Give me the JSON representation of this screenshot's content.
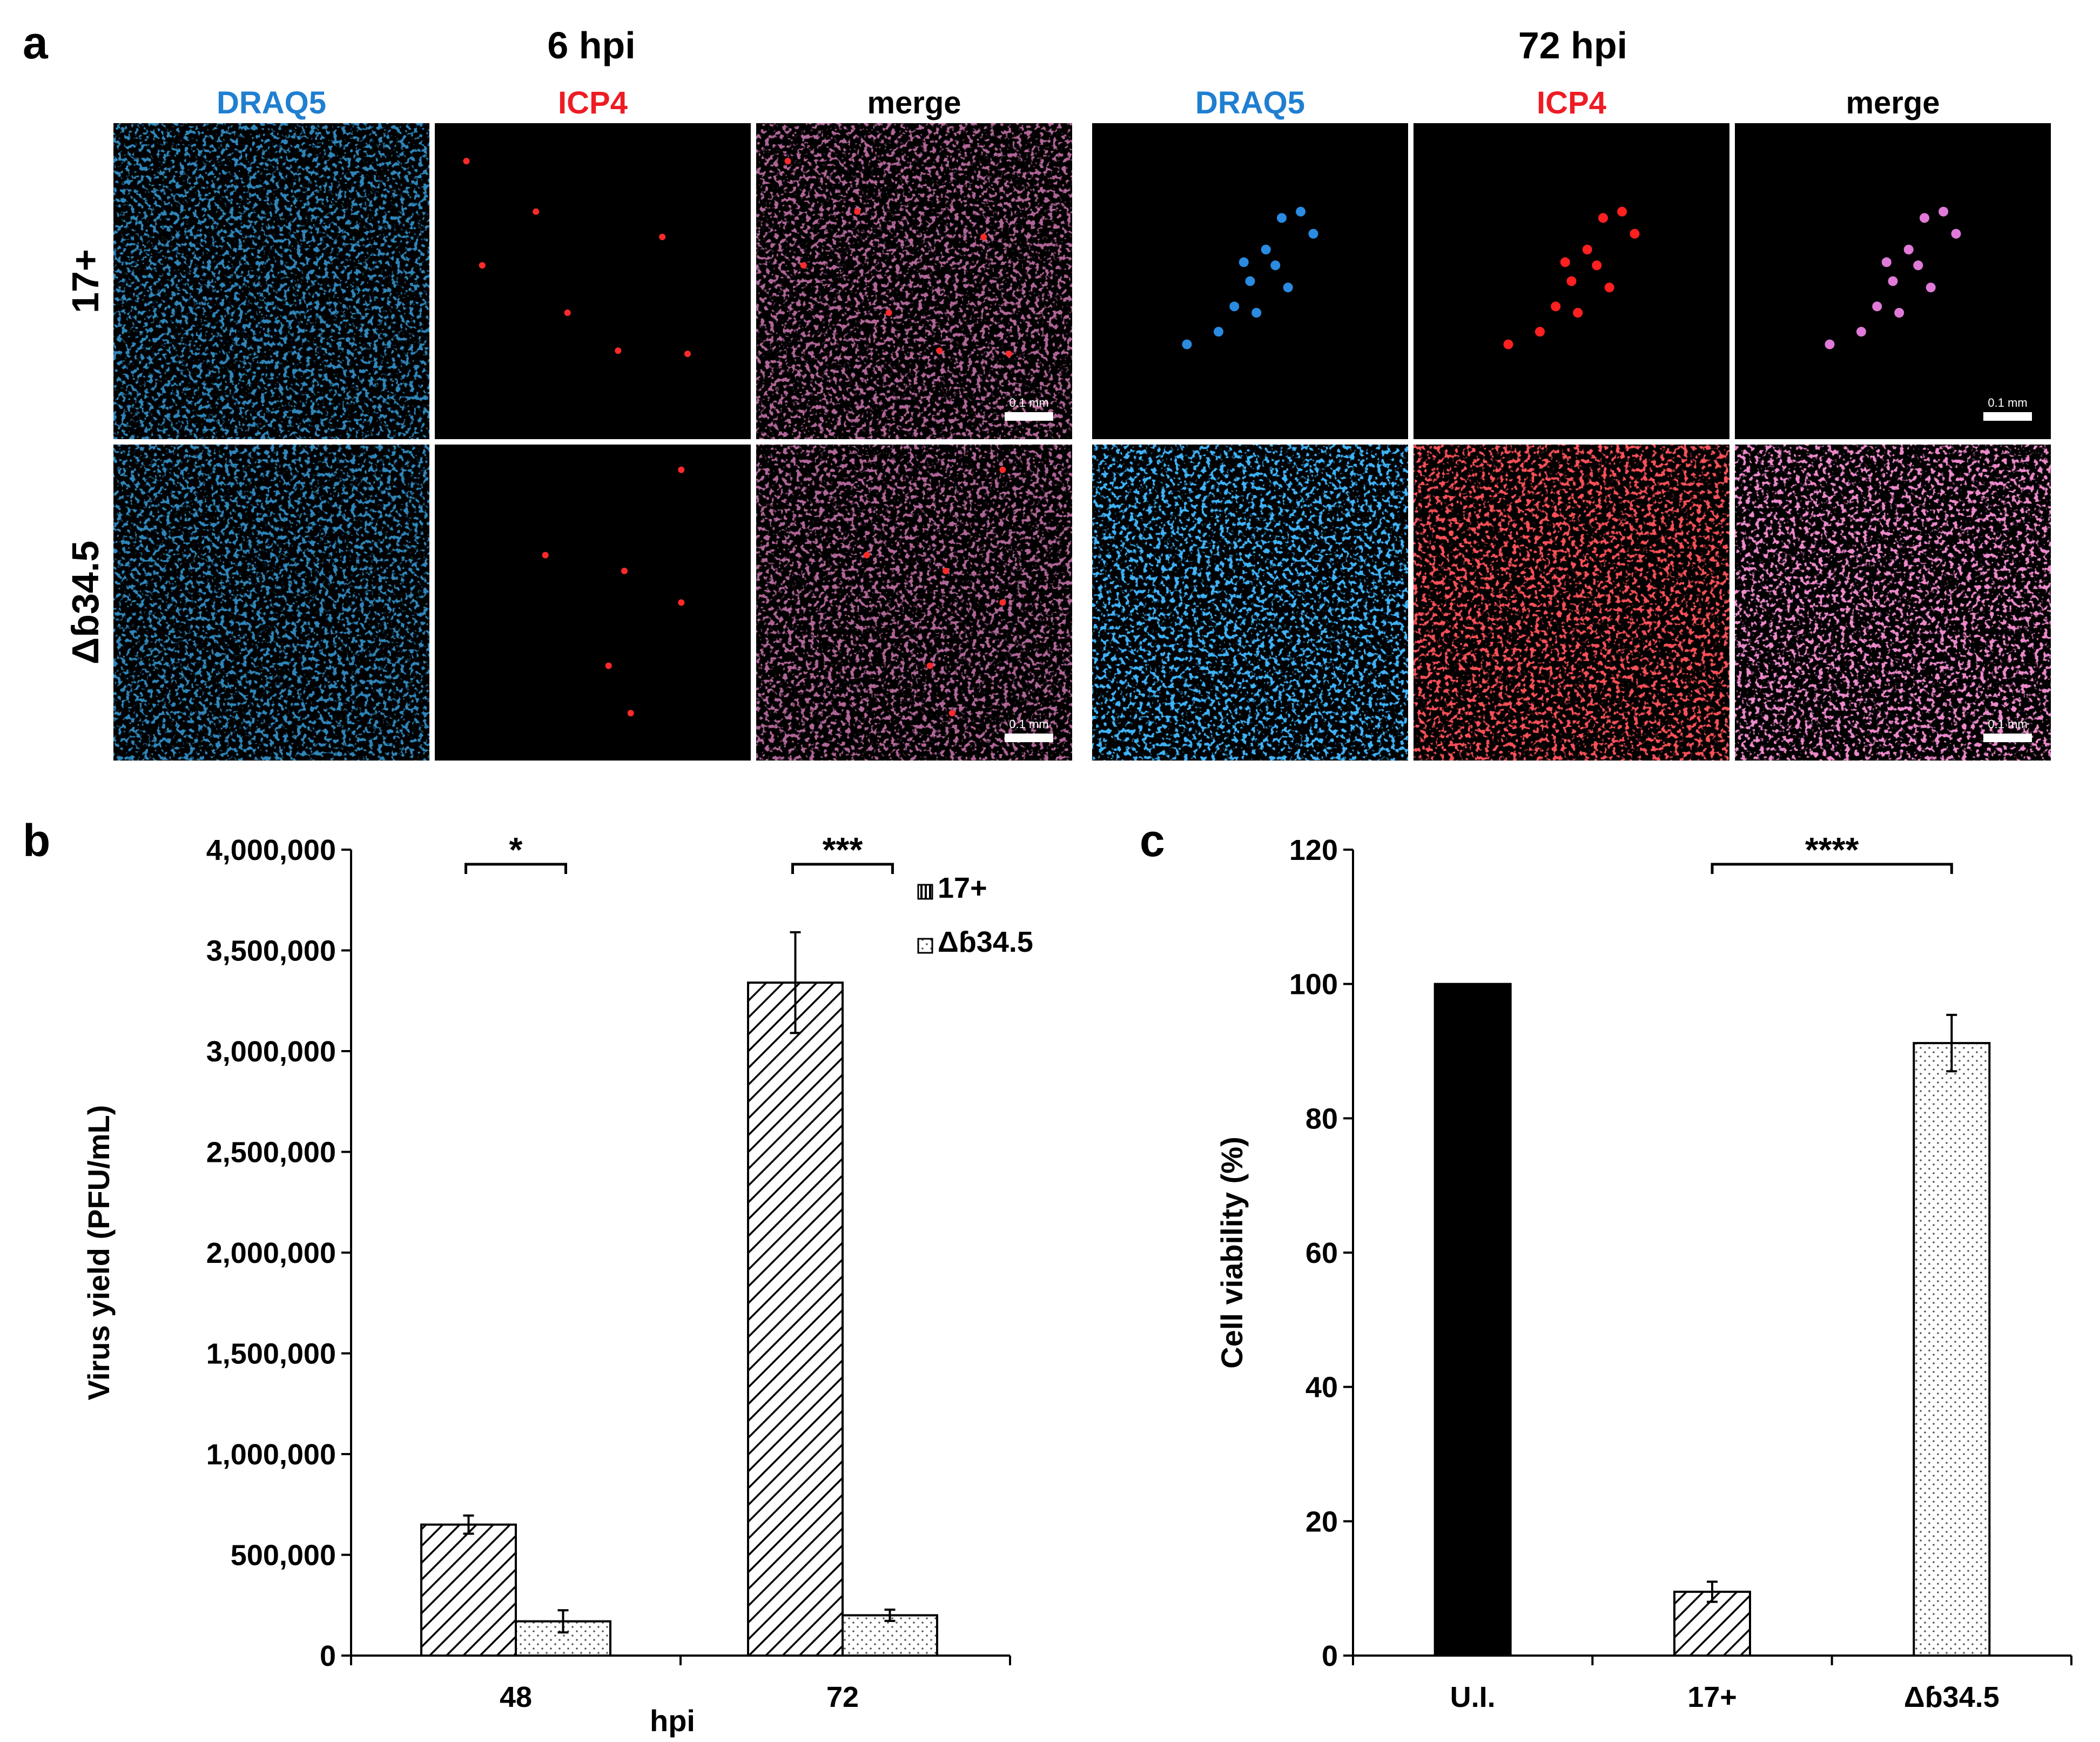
{
  "panel_a": {
    "letter": "a",
    "groups": [
      {
        "time_label": "6 hpi"
      },
      {
        "time_label": "72 hpi"
      }
    ],
    "channels": [
      {
        "label": "DRAQ5",
        "color": "#1f7fd1"
      },
      {
        "label": "ICP4",
        "color": "#ee1c24"
      },
      {
        "label": "merge",
        "color": "#000000"
      }
    ],
    "rows": [
      {
        "label": "17+"
      },
      {
        "label": "Δɓ34.5"
      }
    ],
    "scale_bar_label": "0.1 mm"
  },
  "chart_data": [
    {
      "panel": "b",
      "type": "bar",
      "title": "",
      "xlabel": "hpi",
      "ylabel": "Virus yield (PFU/mL)",
      "categories": [
        "48",
        "72"
      ],
      "ylim": [
        0,
        4000000
      ],
      "yticks": [
        "0",
        "500,000",
        "1,000,000",
        "1,500,000",
        "2,000,000",
        "2,500,000",
        "3,000,000",
        "3,500,000",
        "4,000,000"
      ],
      "legend_position": "top-right",
      "series": [
        {
          "name": "17+",
          "pattern": "diagonal-hatch",
          "values": [
            650000,
            3340000
          ],
          "errors": [
            45000,
            250000
          ]
        },
        {
          "name": "Δɓ34.5",
          "pattern": "dots",
          "values": [
            170000,
            200000
          ],
          "errors": [
            55000,
            28000
          ]
        }
      ],
      "significance": [
        "*",
        "***"
      ]
    },
    {
      "panel": "c",
      "type": "bar",
      "title": "",
      "xlabel": "",
      "ylabel": "Cell viability (%)",
      "categories": [
        "U.I.",
        "17+",
        "Δɓ34.5"
      ],
      "ylim": [
        0,
        120
      ],
      "yticks": [
        "0",
        "20",
        "40",
        "60",
        "80",
        "100",
        "120"
      ],
      "values": [
        100,
        9.5,
        91.2
      ],
      "errors": [
        0,
        1.5,
        4.2
      ],
      "patterns": [
        "solid",
        "diagonal-hatch",
        "dots"
      ],
      "significance": [
        "****"
      ]
    }
  ]
}
